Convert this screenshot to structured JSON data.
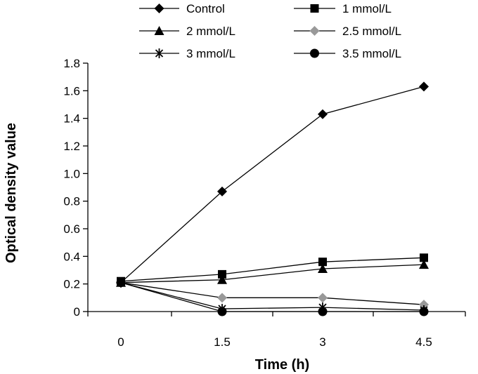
{
  "chart_data": {
    "type": "line",
    "title": "",
    "xlabel": "Time (h)",
    "ylabel": "Optical density value",
    "categories": [
      "0",
      "1.5",
      "3",
      "4.5"
    ],
    "ylim": [
      0,
      1.8
    ],
    "yticks": [
      "0",
      "0.2",
      "0.4",
      "0.6",
      "0.8",
      "1.0",
      "1.2",
      "1.4",
      "1.6",
      "1.8"
    ],
    "grid": false,
    "legend_position": "top",
    "series": [
      {
        "name": "Control",
        "marker": "diamond-icon",
        "color": "#000000",
        "values": [
          0.21,
          0.87,
          1.43,
          1.63
        ]
      },
      {
        "name": "1 mmol/L",
        "marker": "square-icon",
        "color": "#000000",
        "values": [
          0.22,
          0.27,
          0.36,
          0.39
        ]
      },
      {
        "name": "2 mmol/L",
        "marker": "triangle-icon",
        "color": "#000000",
        "values": [
          0.21,
          0.23,
          0.31,
          0.34
        ]
      },
      {
        "name": "2.5 mmol/L",
        "marker": "diamond-icon",
        "color": "#999999",
        "values": [
          0.21,
          0.1,
          0.1,
          0.05
        ]
      },
      {
        "name": "3 mmol/L",
        "marker": "asterisk-icon",
        "color": "#000000",
        "values": [
          0.21,
          0.02,
          0.03,
          0.01
        ]
      },
      {
        "name": "3.5 mmol/L",
        "marker": "circle-icon",
        "color": "#000000",
        "values": [
          0.21,
          0.0,
          0.0,
          0.0
        ]
      }
    ]
  }
}
